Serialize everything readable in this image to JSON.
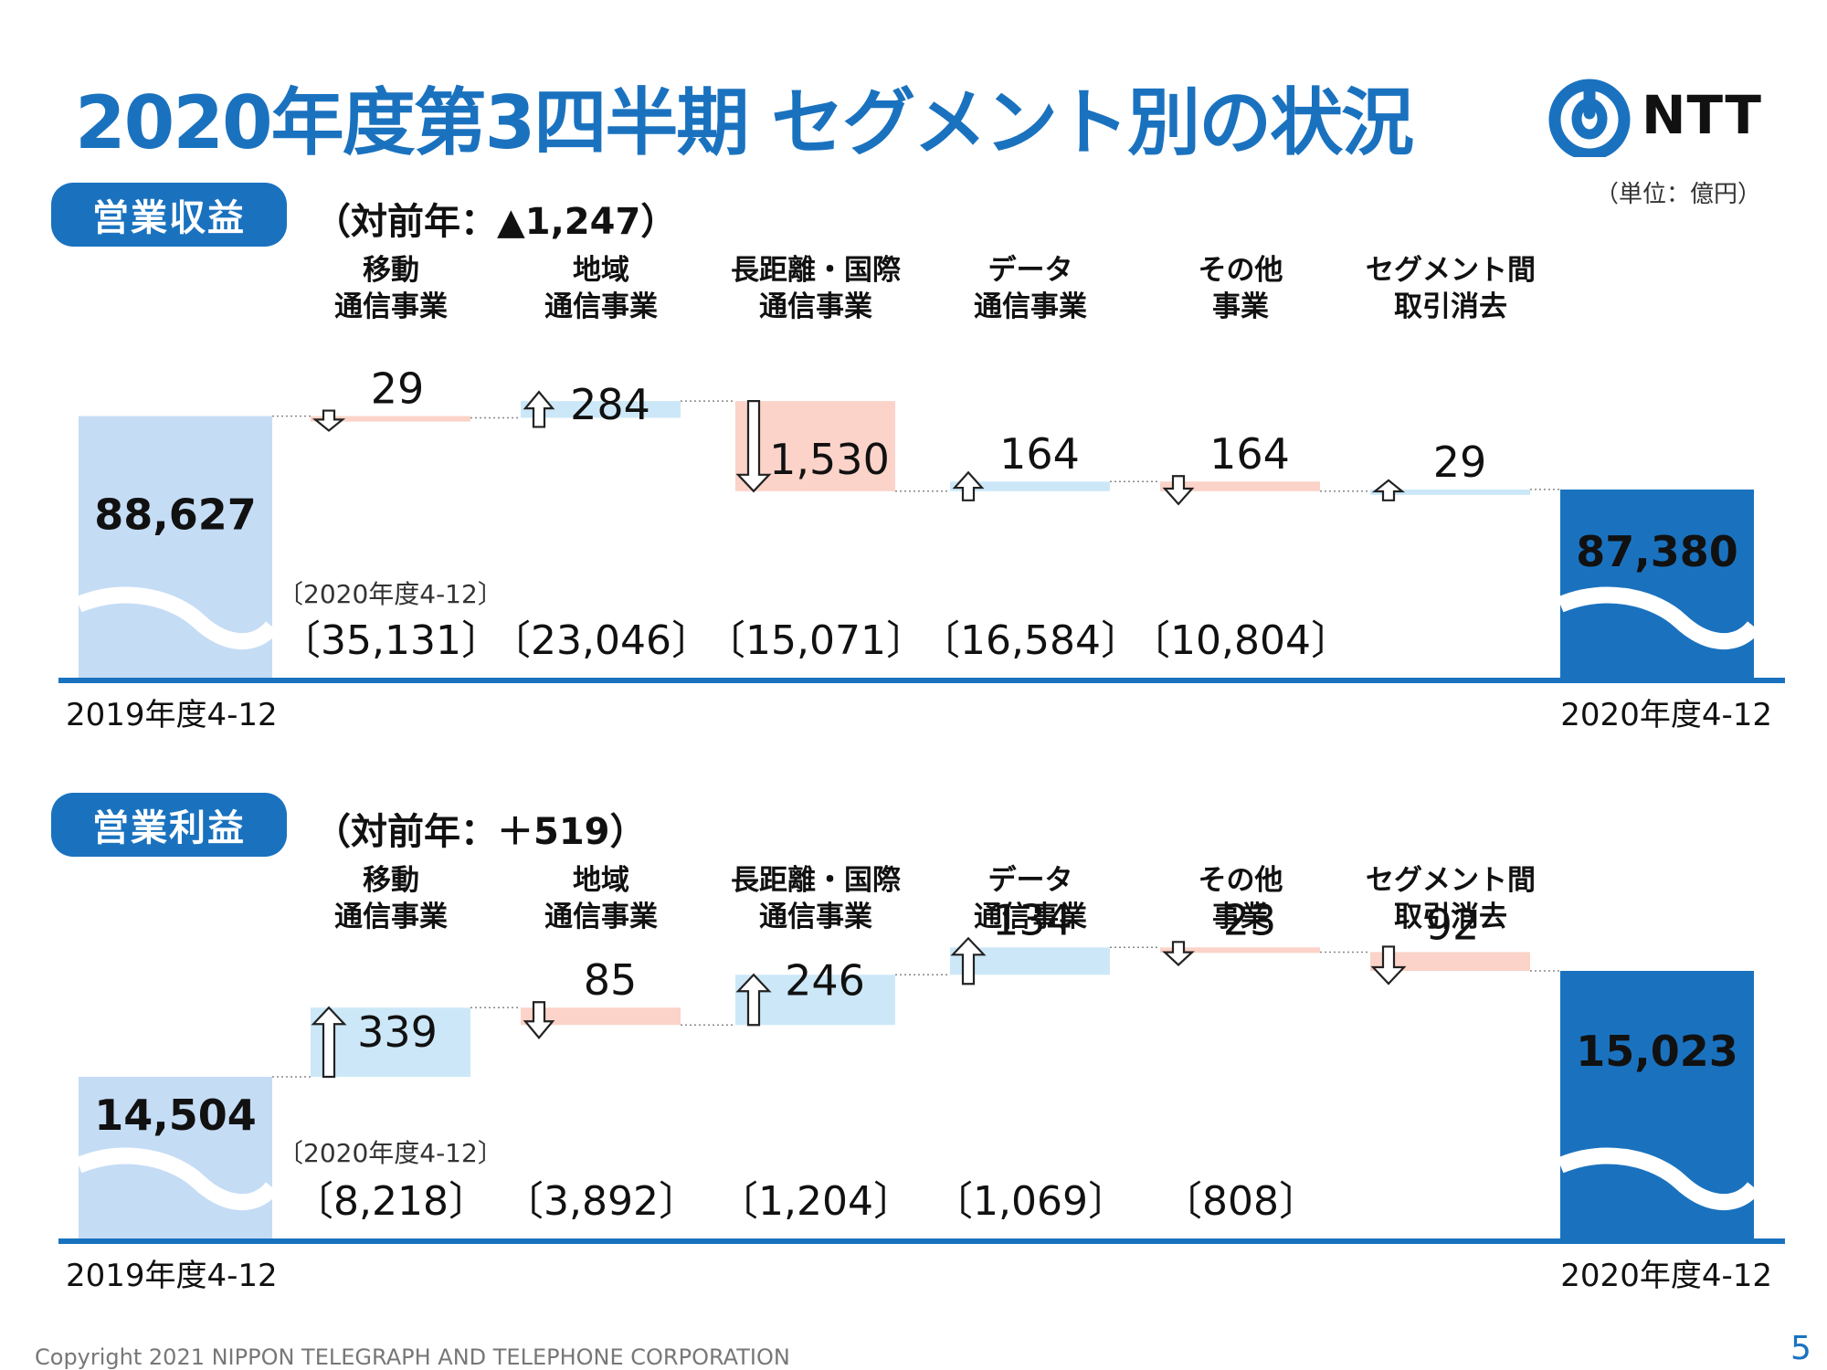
{
  "header": {
    "title": "2020年度第3四半期 セグメント別の状況",
    "logo_text": "NTT",
    "unit": "（単位：億円）"
  },
  "segments": [
    {
      "line1": "移動",
      "line2": "通信事業"
    },
    {
      "line1": "地域",
      "line2": "通信事業"
    },
    {
      "line1": "長距離・国際",
      "line2": "通信事業"
    },
    {
      "line1": "データ",
      "line2": "通信事業"
    },
    {
      "line1": "その他",
      "line2": "事業"
    },
    {
      "line1": "セグメント間",
      "line2": "取引消去"
    }
  ],
  "revenue": {
    "label": "営業収益",
    "delta": "（対前年：▲1,247）"
  },
  "profit": {
    "label": "営業利益",
    "delta": "（対前年：＋519）"
  },
  "footer": {
    "copyright": "Copyright 2021 NIPPON TELEGRAPH AND TELEPHONE CORPORATION",
    "page": "5"
  },
  "colors": {
    "brand": "#1a72bf",
    "start_bar": "#c5dcf5",
    "end_bar": "#1a72bf",
    "increase": "#cce8f8",
    "decrease": "#fbd3c8"
  },
  "chart_data": [
    {
      "type": "bar",
      "subtype": "waterfall",
      "title": "営業収益",
      "categories": [
        "2019年度4-12",
        "移動通信事業",
        "地域通信事業",
        "長距離・国際通信事業",
        "データ通信事業",
        "その他事業",
        "セグメント間取引消去",
        "2020年度4-12"
      ],
      "start": {
        "label": "2019年度4-12",
        "value": 88627,
        "value_label": "88,627"
      },
      "end": {
        "label": "2020年度4-12",
        "value": 87380,
        "value_label": "87,380"
      },
      "changes": [
        {
          "value": -29,
          "label": "29"
        },
        {
          "value": 284,
          "label": "284"
        },
        {
          "value": -1530,
          "label": "1,530"
        },
        {
          "value": 164,
          "label": "164"
        },
        {
          "value": -164,
          "label": "164"
        },
        {
          "value": 29,
          "label": "29"
        }
      ],
      "period_label": "〔2020年度4-12〕",
      "segment_totals": [
        "〔35,131〕",
        "〔23,046〕",
        "〔15,071〕",
        "〔16,584〕",
        "〔10,804〕"
      ]
    },
    {
      "type": "bar",
      "subtype": "waterfall",
      "title": "営業利益",
      "categories": [
        "2019年度4-12",
        "移動通信事業",
        "地域通信事業",
        "長距離・国際通信事業",
        "データ通信事業",
        "その他事業",
        "セグメント間取引消去",
        "2020年度4-12"
      ],
      "start": {
        "label": "2019年度4-12",
        "value": 14504,
        "value_label": "14,504"
      },
      "end": {
        "label": "2020年度4-12",
        "value": 15023,
        "value_label": "15,023"
      },
      "changes": [
        {
          "value": 339,
          "label": "339"
        },
        {
          "value": -85,
          "label": "85"
        },
        {
          "value": 246,
          "label": "246"
        },
        {
          "value": 134,
          "label": "134"
        },
        {
          "value": -23,
          "label": "23"
        },
        {
          "value": -92,
          "label": "92"
        }
      ],
      "period_label": "〔2020年度4-12〕",
      "segment_totals": [
        "〔8,218〕",
        "〔3,892〕",
        "〔1,204〕",
        "〔1,069〕",
        "〔808〕"
      ]
    }
  ]
}
